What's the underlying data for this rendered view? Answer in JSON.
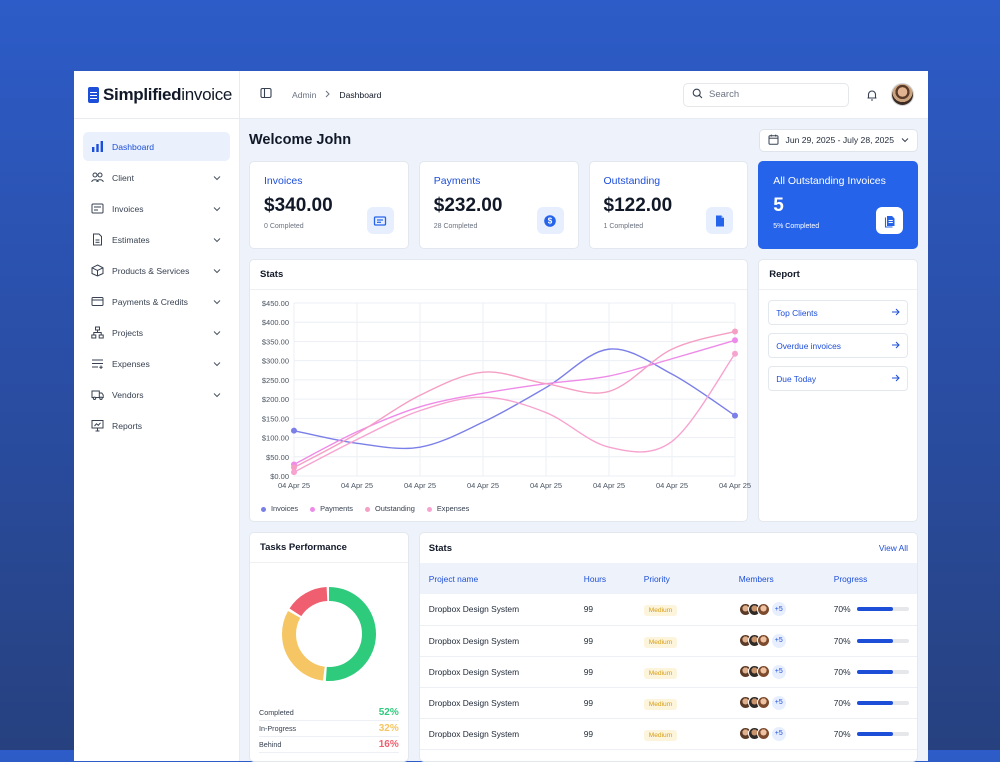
{
  "brand": {
    "name_bold": "Simplified",
    "name_regular": "invoice"
  },
  "sidebar": {
    "items": [
      {
        "label": "Dashboard",
        "icon": "bar-chart-icon",
        "active": true,
        "expandable": false
      },
      {
        "label": "Client",
        "icon": "users-icon",
        "expandable": true
      },
      {
        "label": "Invoices",
        "icon": "invoice-icon",
        "expandable": true
      },
      {
        "label": "Estimates",
        "icon": "document-icon",
        "expandable": true
      },
      {
        "label": "Products & Services",
        "icon": "box-icon",
        "expandable": true
      },
      {
        "label": "Payments & Credits",
        "icon": "credit-card-icon",
        "expandable": true
      },
      {
        "label": "Projects",
        "icon": "hierarchy-icon",
        "expandable": true
      },
      {
        "label": "Expenses",
        "icon": "list-add-icon",
        "expandable": true
      },
      {
        "label": "Vendors",
        "icon": "truck-icon",
        "expandable": true
      },
      {
        "label": "Reports",
        "icon": "presentation-icon",
        "expandable": false
      }
    ]
  },
  "topbar": {
    "breadcrumb": [
      "Admin",
      "Dashboard"
    ],
    "search_placeholder": "Search"
  },
  "welcome": "Welcome John",
  "date_range": "Jun 29, 2025 - July 28, 2025",
  "cards": [
    {
      "title": "Invoices",
      "value": "$340.00",
      "sub": "0 Completed",
      "icon": "ticket-icon"
    },
    {
      "title": "Payments",
      "value": "$232.00",
      "sub": "28 Completed",
      "icon": "dollar-icon"
    },
    {
      "title": "Outstanding",
      "value": "$122.00",
      "sub": "1 Completed",
      "icon": "file-icon"
    },
    {
      "title": "All Outstanding Invoices",
      "value": "5",
      "sub": "5% Completed",
      "icon": "files-icon"
    }
  ],
  "stats_title": "Stats",
  "report": {
    "title": "Report",
    "links": [
      "Top Clients",
      "Overdue invoices",
      "Due Today"
    ]
  },
  "chart_data": {
    "type": "line",
    "x": [
      "04 Apr 25",
      "04 Apr 25",
      "04 Apr 25",
      "04 Apr 25",
      "04 Apr 25",
      "04 Apr 25",
      "04 Apr 25",
      "04 Apr 25"
    ],
    "yticks": [
      "$450.00",
      "$400.00",
      "$350.00",
      "$300.00",
      "$250.00",
      "$200.00",
      "$150.00",
      "$100.00",
      "$50.00",
      "$0.00"
    ],
    "ylim": [
      0,
      450
    ],
    "series": [
      {
        "name": "Invoices",
        "color": "#7b7fe8",
        "values": [
          118,
          85,
          75,
          140,
          230,
          330,
          265,
          157
        ]
      },
      {
        "name": "Payments",
        "color": "#ee8be8",
        "values": [
          30,
          115,
          180,
          215,
          240,
          260,
          305,
          353
        ]
      },
      {
        "name": "Outstanding",
        "color": "#f59fc4",
        "values": [
          22,
          110,
          210,
          270,
          240,
          220,
          330,
          376
        ]
      },
      {
        "name": "Expenses",
        "color": "#f7a3cf",
        "values": [
          10,
          95,
          170,
          205,
          165,
          75,
          90,
          318
        ]
      }
    ],
    "grid": true,
    "legend": "bottom-left"
  },
  "tasks": {
    "title": "Tasks Performance",
    "items": [
      {
        "label": "Completed",
        "pct": "52%",
        "value": 52,
        "color": "#2fcb7d"
      },
      {
        "label": "In-Progress",
        "pct": "32%",
        "value": 32,
        "color": "#f6c564"
      },
      {
        "label": "Behind",
        "pct": "16%",
        "value": 16,
        "color": "#ef5f6f"
      }
    ]
  },
  "projects": {
    "title": "Stats",
    "view_all": "View All",
    "headers": [
      "Project name",
      "Hours",
      "Priority",
      "Members",
      "Progress"
    ],
    "rows": [
      {
        "name": "Dropbox Design System",
        "hours": "99",
        "priority": "Medium",
        "more": "+5",
        "progress": "70%",
        "value": 0.7
      },
      {
        "name": "Dropbox Design System",
        "hours": "99",
        "priority": "Medium",
        "more": "+5",
        "progress": "70%",
        "value": 0.7
      },
      {
        "name": "Dropbox Design System",
        "hours": "99",
        "priority": "Medium",
        "more": "+5",
        "progress": "70%",
        "value": 0.7
      },
      {
        "name": "Dropbox Design System",
        "hours": "99",
        "priority": "Medium",
        "more": "+5",
        "progress": "70%",
        "value": 0.7
      },
      {
        "name": "Dropbox Design System",
        "hours": "99",
        "priority": "Medium",
        "more": "+5",
        "progress": "70%",
        "value": 0.7
      }
    ]
  }
}
